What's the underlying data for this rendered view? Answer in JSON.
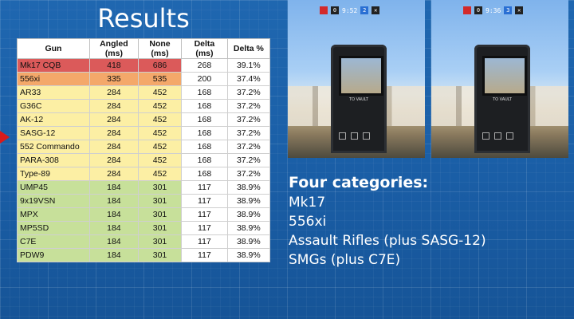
{
  "title": "Results",
  "table": {
    "headers": [
      "Gun",
      "Angled (ms)",
      "None (ms)",
      "Delta (ms)",
      "Delta %"
    ],
    "rows": [
      {
        "gun": "Mk17 CQB",
        "angled": "418",
        "none": "686",
        "delta": "268",
        "pct": "39.1%",
        "tier": "red"
      },
      {
        "gun": "556xi",
        "angled": "335",
        "none": "535",
        "delta": "200",
        "pct": "37.4%",
        "tier": "orange"
      },
      {
        "gun": "AR33",
        "angled": "284",
        "none": "452",
        "delta": "168",
        "pct": "37.2%",
        "tier": "yellow"
      },
      {
        "gun": "G36C",
        "angled": "284",
        "none": "452",
        "delta": "168",
        "pct": "37.2%",
        "tier": "yellow"
      },
      {
        "gun": "AK-12",
        "angled": "284",
        "none": "452",
        "delta": "168",
        "pct": "37.2%",
        "tier": "yellow"
      },
      {
        "gun": "SASG-12",
        "angled": "284",
        "none": "452",
        "delta": "168",
        "pct": "37.2%",
        "tier": "yellow"
      },
      {
        "gun": "552 Commando",
        "angled": "284",
        "none": "452",
        "delta": "168",
        "pct": "37.2%",
        "tier": "yellow"
      },
      {
        "gun": "PARA-308",
        "angled": "284",
        "none": "452",
        "delta": "168",
        "pct": "37.2%",
        "tier": "yellow"
      },
      {
        "gun": "Type-89",
        "angled": "284",
        "none": "452",
        "delta": "168",
        "pct": "37.2%",
        "tier": "yellow"
      },
      {
        "gun": "UMP45",
        "angled": "184",
        "none": "301",
        "delta": "117",
        "pct": "38.9%",
        "tier": "green"
      },
      {
        "gun": "9x19VSN",
        "angled": "184",
        "none": "301",
        "delta": "117",
        "pct": "38.9%",
        "tier": "green"
      },
      {
        "gun": "MPX",
        "angled": "184",
        "none": "301",
        "delta": "117",
        "pct": "38.9%",
        "tier": "green"
      },
      {
        "gun": "MP5SD",
        "angled": "184",
        "none": "301",
        "delta": "117",
        "pct": "38.9%",
        "tier": "green"
      },
      {
        "gun": "C7E",
        "angled": "184",
        "none": "301",
        "delta": "117",
        "pct": "38.9%",
        "tier": "green"
      },
      {
        "gun": "PDW9",
        "angled": "184",
        "none": "301",
        "delta": "117",
        "pct": "38.9%",
        "tier": "green"
      }
    ]
  },
  "screenshots": {
    "left": {
      "score_red": "0",
      "timer": "9:52",
      "score_blue": "2",
      "vault": "TO VAULT"
    },
    "right": {
      "score_red": "0",
      "timer": "9:36",
      "score_blue": "3",
      "vault": "TO VAULT"
    }
  },
  "categories": {
    "heading": "Four categories:",
    "items": [
      "Mk17",
      "556xi",
      "Assault Rifles (plus SASG-12)",
      "SMGs (plus C7E)"
    ]
  },
  "colors": {
    "background": "#1a5ea6",
    "red_tier": "#db5a5a",
    "orange_tier": "#f4a86a",
    "yellow_tier": "#fcefa4",
    "green_tier": "#c7e09a",
    "pointer": "#d91a1a"
  }
}
